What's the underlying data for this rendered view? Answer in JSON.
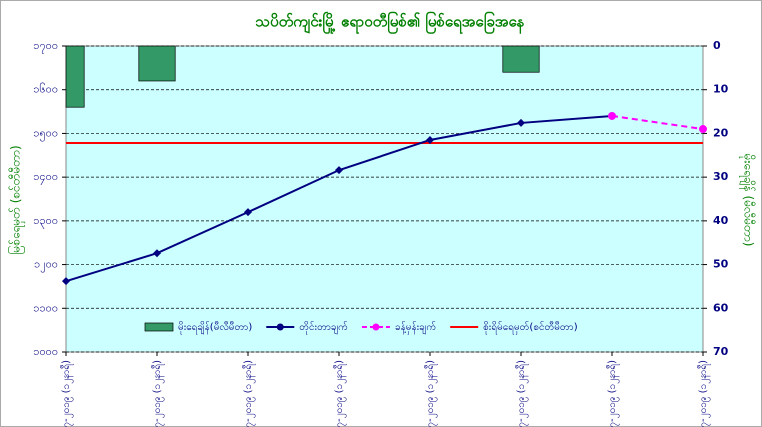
{
  "chart_data": {
    "type": "line",
    "title": "သပိတ်ကျင်းမြို့ ဧရာဝတီမြစ်၏ မြစ်ရေအခြေအနေ",
    "y_label": "မြစ်ရေမှတ် (စင်တီမီတာ)",
    "y2_label": "မိုးရေချိန် (မီလီမီတာ)",
    "categories": [
      "၁၃-၇-၂၀၁၉ (၁၂နာရီ)",
      "၁၄-၇-၂၀၁၉ (၁၂နာရီ)",
      "၁၅-၇-၂၀၁၉ (၁၂နာရီ)",
      "၁၆-၇-၂၀၁၉ (၁၂နာရီ)",
      "၁၇-၇-၂၀၁၉ (၁၂နာရီ)",
      "၁၈-၇-၂၀၁၉ (၁၂နာရီ)",
      "၁၉-၇-၂၀၁၉ (၁၂နာရီ)",
      "၂၀-၇-၂၀၁၉ (၁၂နာရီ)"
    ],
    "series": [
      {
        "name": "မိုးရေချိန်(မီလီမီတာ)",
        "type": "bar",
        "axis": "y2",
        "color": "#339966",
        "values": [
          14,
          8,
          null,
          null,
          null,
          6,
          null,
          null
        ]
      },
      {
        "name": "တိုင်းတာချက်",
        "type": "line",
        "color": "#000080",
        "values": [
          1162,
          1226,
          1320,
          1416,
          1485,
          1524,
          1540,
          null
        ]
      },
      {
        "name": "ခန့်မှန်းချက်",
        "type": "line",
        "dashed": true,
        "color": "#ff00ff",
        "values": [
          null,
          null,
          null,
          null,
          null,
          null,
          1540,
          1510
        ]
      }
    ],
    "reference_line": {
      "name": "စိုးရိမ်ရေမှတ်(စင်တီမီတာ)",
      "value": 1478,
      "color": "#ff0000"
    },
    "ylim": [
      1000,
      1700
    ],
    "yticks": [
      {
        "value": 1000,
        "label": "၁၀၀၀"
      },
      {
        "value": 1100,
        "label": "၁၁၀၀"
      },
      {
        "value": 1200,
        "label": "၁၂၀၀"
      },
      {
        "value": 1300,
        "label": "၁၃၀၀"
      },
      {
        "value": 1400,
        "label": "၁၄၀၀"
      },
      {
        "value": 1500,
        "label": "၁၅၀၀"
      },
      {
        "value": 1600,
        "label": "၁၆၀၀"
      },
      {
        "value": 1700,
        "label": "၁၇၀၀"
      }
    ],
    "y2lim": [
      70,
      0
    ],
    "y2ticks": [
      0,
      10,
      20,
      30,
      40,
      50,
      60,
      70
    ],
    "grid": true
  }
}
